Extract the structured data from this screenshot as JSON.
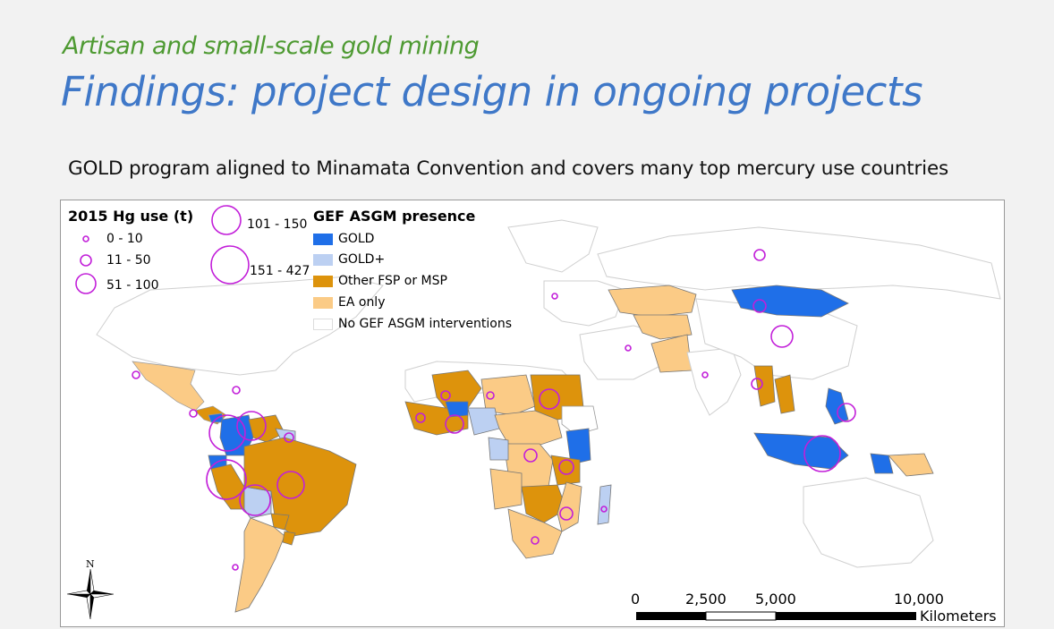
{
  "header": {
    "subtitle": "Artisan and small-scale gold mining",
    "title": "Findings: project design in ongoing projects",
    "caption": "GOLD program aligned to Minamata Convention and covers many top mercury use countries"
  },
  "legend_hg": {
    "title": "2015 Hg use (t)",
    "classes": [
      "0 - 10",
      "11 - 50",
      "51 - 100",
      "101 - 150",
      "151 - 427"
    ]
  },
  "legend_gef": {
    "title": "GEF ASGM presence",
    "items": [
      {
        "label": "GOLD",
        "color": "#1f6fe8"
      },
      {
        "label": "GOLD+",
        "color": "#bcd0f2"
      },
      {
        "label": "Other FSP or MSP",
        "color": "#dd930c"
      },
      {
        "label": "EA only",
        "color": "#fbcb86"
      },
      {
        "label": "No GEF ASGM interventions",
        "color": "#ffffff"
      }
    ]
  },
  "north_arrow": {
    "label": "N"
  },
  "scale_bar": {
    "ticks": [
      "0",
      "2,500",
      "5,000",
      "10,000"
    ],
    "unit": "Kilometers"
  },
  "colors": {
    "gold": "#1f6fe8",
    "gold_plus": "#bcd0f2",
    "other": "#dd930c",
    "ea": "#fbcb86",
    "none": "#ffffff",
    "circle": "#c21fd9",
    "subtitle": "#4e9a32",
    "title": "#3f78c8"
  }
}
